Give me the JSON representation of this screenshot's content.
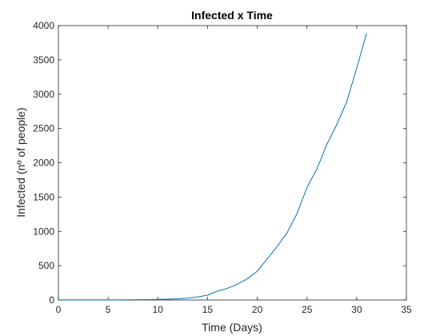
{
  "chart_data": {
    "type": "line",
    "title": "Infected x Time",
    "xlabel": "Time (Days)",
    "ylabel": "Infected (nº of people)",
    "xlim": [
      0,
      35
    ],
    "ylim": [
      0,
      4000
    ],
    "xticks": [
      0,
      5,
      10,
      15,
      20,
      25,
      30,
      35
    ],
    "yticks": [
      0,
      500,
      1000,
      1500,
      2000,
      2500,
      3000,
      3500,
      4000
    ],
    "grid": false,
    "legend": "none",
    "colors": {
      "line": "#0072BD",
      "axes": "#262626",
      "background": "#ffffff"
    },
    "series": [
      {
        "x": [
          0,
          1,
          2,
          3,
          4,
          5,
          6,
          7,
          8,
          9,
          10,
          11,
          12,
          13,
          14,
          15,
          16,
          17,
          18,
          19,
          20,
          21,
          22,
          23,
          24,
          25,
          26,
          27,
          28,
          29,
          30,
          31
        ],
        "values": [
          1,
          1,
          1,
          1,
          1,
          2,
          2,
          3,
          4,
          6,
          8,
          12,
          18,
          28,
          44,
          70,
          130,
          170,
          230,
          310,
          420,
          600,
          780,
          980,
          1260,
          1640,
          1910,
          2270,
          2560,
          2890,
          3380,
          3890
        ]
      }
    ]
  }
}
